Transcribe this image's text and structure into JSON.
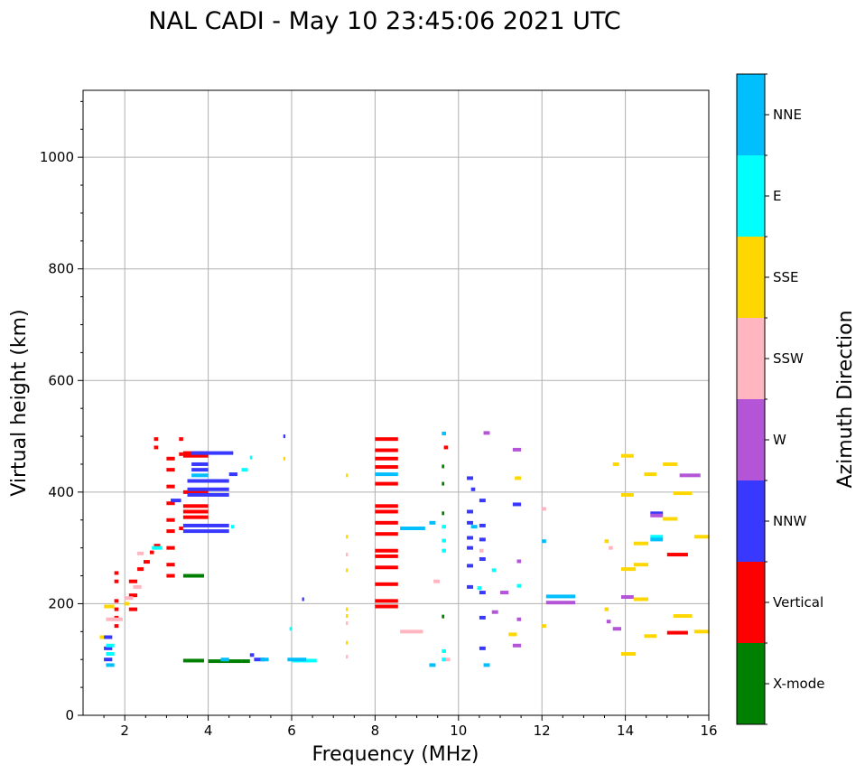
{
  "chart_data": {
    "type": "scatter",
    "title": "NAL CADI - May 10 23:45:06 2021 UTC",
    "xlabel": "Frequency (MHz)",
    "ylabel": "Virtual height (km)",
    "xlim": [
      1,
      16
    ],
    "ylim": [
      0,
      1120
    ],
    "xticks": [
      2,
      4,
      6,
      8,
      10,
      12,
      14,
      16
    ],
    "yticks": [
      0,
      200,
      400,
      600,
      800,
      1000
    ],
    "grid": true,
    "colorbar": {
      "label": "Azimuth Direction",
      "categories": [
        {
          "name": "X-mode",
          "color": "#008000"
        },
        {
          "name": "Vertical",
          "color": "#ff0000"
        },
        {
          "name": "NNW",
          "color": "#3838ff"
        },
        {
          "name": "W",
          "color": "#b455d8"
        },
        {
          "name": "SSW",
          "color": "#ffb6c1"
        },
        {
          "name": "SSE",
          "color": "#ffd700"
        },
        {
          "name": "E",
          "color": "#00ffff"
        },
        {
          "name": "NNE",
          "color": "#00bfff"
        }
      ]
    },
    "series": [
      {
        "name": "X-mode",
        "color": "#008000",
        "points": [
          [
            3.4,
            98,
            3.9
          ],
          [
            3.4,
            250,
            3.9
          ],
          [
            4.0,
            97,
            4.8
          ],
          [
            4.8,
            97,
            5.0
          ],
          [
            9.6,
            362,
            9.66
          ],
          [
            9.6,
            415,
            9.66
          ],
          [
            9.6,
            446,
            9.66
          ],
          [
            9.6,
            177,
            9.66
          ]
        ]
      },
      {
        "name": "Vertical",
        "color": "#ff0000",
        "points": [
          [
            1.75,
            160,
            1.85
          ],
          [
            1.75,
            175,
            1.85
          ],
          [
            1.75,
            190,
            1.85
          ],
          [
            1.75,
            205,
            1.85
          ],
          [
            1.75,
            240,
            1.85
          ],
          [
            1.75,
            255,
            1.85
          ],
          [
            2.1,
            190,
            2.3
          ],
          [
            2.1,
            215,
            2.3
          ],
          [
            2.1,
            240,
            2.3
          ],
          [
            2.3,
            262,
            2.45
          ],
          [
            2.45,
            275,
            2.6
          ],
          [
            2.6,
            292,
            2.7
          ],
          [
            2.7,
            304,
            2.85
          ],
          [
            2.7,
            480,
            2.8
          ],
          [
            2.7,
            495,
            2.8
          ],
          [
            3.0,
            250,
            3.2
          ],
          [
            3.0,
            270,
            3.2
          ],
          [
            3.0,
            300,
            3.2
          ],
          [
            3.0,
            330,
            3.2
          ],
          [
            3.0,
            350,
            3.2
          ],
          [
            3.0,
            380,
            3.2
          ],
          [
            3.0,
            410,
            3.2
          ],
          [
            3.0,
            440,
            3.2
          ],
          [
            3.0,
            460,
            3.2
          ],
          [
            3.3,
            468,
            3.4
          ],
          [
            3.3,
            495,
            3.4
          ],
          [
            3.3,
            335,
            3.4
          ],
          [
            3.4,
            355,
            4.0
          ],
          [
            3.4,
            365,
            4.0
          ],
          [
            3.4,
            375,
            4.0
          ],
          [
            3.4,
            400,
            4.0
          ],
          [
            3.4,
            465,
            4.0
          ],
          [
            3.4,
            470,
            4.0
          ],
          [
            8.0,
            495,
            8.55
          ],
          [
            8.0,
            475,
            8.55
          ],
          [
            8.0,
            460,
            8.55
          ],
          [
            8.0,
            445,
            8.55
          ],
          [
            8.0,
            415,
            8.55
          ],
          [
            8.0,
            375,
            8.55
          ],
          [
            8.0,
            365,
            8.55
          ],
          [
            8.0,
            345,
            8.55
          ],
          [
            8.0,
            325,
            8.55
          ],
          [
            8.0,
            295,
            8.55
          ],
          [
            8.0,
            285,
            8.55
          ],
          [
            8.0,
            265,
            8.55
          ],
          [
            8.0,
            235,
            8.55
          ],
          [
            8.0,
            205,
            8.55
          ],
          [
            8.0,
            195,
            8.55
          ],
          [
            9.65,
            480,
            9.75
          ],
          [
            15.0,
            148,
            15.5
          ],
          [
            15.0,
            288,
            15.5
          ]
        ]
      },
      {
        "name": "NNW",
        "color": "#3838ff",
        "points": [
          [
            1.5,
            100,
            1.7
          ],
          [
            1.5,
            120,
            1.7
          ],
          [
            1.5,
            140,
            1.7
          ],
          [
            3.1,
            385,
            3.35
          ],
          [
            3.4,
            330,
            4.5
          ],
          [
            3.4,
            340,
            4.5
          ],
          [
            3.5,
            395,
            4.5
          ],
          [
            3.5,
            405,
            4.5
          ],
          [
            3.5,
            420,
            4.5
          ],
          [
            3.6,
            440,
            4.0
          ],
          [
            3.6,
            450,
            4.0
          ],
          [
            3.6,
            470,
            4.6
          ],
          [
            4.5,
            432,
            4.7
          ],
          [
            5.0,
            108,
            5.1
          ],
          [
            5.1,
            100,
            5.35
          ],
          [
            5.8,
            500,
            5.85
          ],
          [
            6.25,
            208,
            6.3
          ],
          [
            10.2,
            230,
            10.35
          ],
          [
            10.2,
            268,
            10.35
          ],
          [
            10.2,
            300,
            10.35
          ],
          [
            10.2,
            318,
            10.35
          ],
          [
            10.2,
            345,
            10.35
          ],
          [
            10.2,
            365,
            10.35
          ],
          [
            10.2,
            425,
            10.35
          ],
          [
            10.3,
            405,
            10.4
          ],
          [
            10.5,
            120,
            10.65
          ],
          [
            10.5,
            175,
            10.65
          ],
          [
            10.5,
            220,
            10.65
          ],
          [
            10.5,
            280,
            10.65
          ],
          [
            10.5,
            315,
            10.65
          ],
          [
            10.5,
            340,
            10.65
          ],
          [
            10.5,
            385,
            10.65
          ],
          [
            11.3,
            378,
            11.5
          ],
          [
            14.6,
            362,
            14.9
          ]
        ]
      },
      {
        "name": "W",
        "color": "#b455d8",
        "points": [
          [
            10.6,
            506,
            10.75
          ],
          [
            11.3,
            476,
            11.5
          ],
          [
            11.0,
            220,
            11.2
          ],
          [
            11.3,
            125,
            11.5
          ],
          [
            11.4,
            172,
            11.5
          ],
          [
            11.4,
            276,
            11.5
          ],
          [
            10.8,
            185,
            10.95
          ],
          [
            12.1,
            202,
            12.8
          ],
          [
            13.55,
            168,
            13.65
          ],
          [
            13.7,
            155,
            13.9
          ],
          [
            13.9,
            212,
            14.2
          ],
          [
            15.3,
            430,
            15.8
          ],
          [
            14.6,
            358,
            14.9
          ]
        ]
      },
      {
        "name": "SSW",
        "color": "#ffb6c1",
        "points": [
          [
            1.55,
            172,
            1.95
          ],
          [
            2.0,
            210,
            2.2
          ],
          [
            2.2,
            230,
            2.4
          ],
          [
            2.3,
            290,
            2.45
          ],
          [
            8.6,
            150,
            9.15
          ],
          [
            9.4,
            240,
            9.55
          ],
          [
            9.7,
            100,
            9.8
          ],
          [
            7.3,
            105,
            7.35
          ],
          [
            7.3,
            165,
            7.35
          ],
          [
            7.3,
            288,
            7.35
          ],
          [
            10.5,
            295,
            10.6
          ],
          [
            12.0,
            370,
            12.1
          ],
          [
            13.6,
            300,
            13.7
          ]
        ]
      },
      {
        "name": "SSE",
        "color": "#ffd700",
        "points": [
          [
            1.4,
            140,
            1.5
          ],
          [
            1.5,
            195,
            1.75
          ],
          [
            2.0,
            200,
            2.1
          ],
          [
            5.8,
            460,
            5.85
          ],
          [
            7.3,
            430,
            7.35
          ],
          [
            7.3,
            320,
            7.35
          ],
          [
            7.3,
            260,
            7.35
          ],
          [
            7.3,
            190,
            7.35
          ],
          [
            7.3,
            178,
            7.35
          ],
          [
            7.3,
            130,
            7.35
          ],
          [
            11.2,
            145,
            11.4
          ],
          [
            11.35,
            425,
            11.5
          ],
          [
            12.0,
            160,
            12.1
          ],
          [
            13.5,
            312,
            13.6
          ],
          [
            13.5,
            190,
            13.6
          ],
          [
            13.7,
            450,
            13.85
          ],
          [
            13.9,
            465,
            14.2
          ],
          [
            13.9,
            262,
            14.25
          ],
          [
            13.9,
            110,
            14.25
          ],
          [
            13.9,
            395,
            14.2
          ],
          [
            14.2,
            308,
            14.55
          ],
          [
            14.2,
            270,
            14.55
          ],
          [
            14.2,
            208,
            14.55
          ],
          [
            14.45,
            432,
            14.75
          ],
          [
            14.45,
            142,
            14.75
          ],
          [
            14.9,
            450,
            15.25
          ],
          [
            14.9,
            352,
            15.25
          ],
          [
            15.15,
            398,
            15.6
          ],
          [
            15.15,
            178,
            15.6
          ],
          [
            15.65,
            320,
            16.0
          ],
          [
            15.65,
            150,
            16.0
          ]
        ]
      },
      {
        "name": "E",
        "color": "#00ffff",
        "points": [
          [
            1.55,
            110,
            1.75
          ],
          [
            1.55,
            125,
            1.75
          ],
          [
            2.65,
            300,
            2.9
          ],
          [
            4.55,
            338,
            4.62
          ],
          [
            4.8,
            440,
            4.95
          ],
          [
            5.0,
            462,
            5.05
          ],
          [
            5.95,
            155,
            6.0
          ],
          [
            6.0,
            98,
            6.6
          ],
          [
            9.6,
            100,
            9.7
          ],
          [
            9.6,
            115,
            9.7
          ],
          [
            9.6,
            295,
            9.7
          ],
          [
            9.6,
            313,
            9.7
          ],
          [
            9.6,
            338,
            9.7
          ],
          [
            10.45,
            228,
            10.55
          ],
          [
            10.8,
            260,
            10.9
          ],
          [
            11.4,
            232,
            11.5
          ],
          [
            14.6,
            320,
            14.9
          ]
        ]
      },
      {
        "name": "NNE",
        "color": "#00bfff",
        "points": [
          [
            1.55,
            90,
            1.75
          ],
          [
            3.6,
            430,
            4.0
          ],
          [
            4.3,
            100,
            4.5
          ],
          [
            5.25,
            100,
            5.45
          ],
          [
            5.9,
            100,
            6.35
          ],
          [
            8.0,
            432,
            8.55
          ],
          [
            8.6,
            335,
            9.2
          ],
          [
            9.6,
            505,
            9.7
          ],
          [
            9.3,
            345,
            9.45
          ],
          [
            9.3,
            90,
            9.45
          ],
          [
            10.3,
            338,
            10.45
          ],
          [
            10.6,
            90,
            10.75
          ],
          [
            12.0,
            312,
            12.1
          ],
          [
            12.1,
            213,
            12.8
          ],
          [
            14.6,
            315,
            14.9
          ]
        ]
      }
    ]
  }
}
